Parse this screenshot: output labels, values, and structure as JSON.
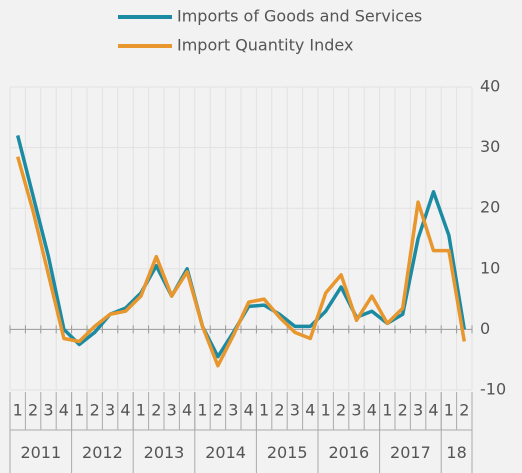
{
  "chart_data": {
    "type": "line",
    "categories": [
      "1",
      "2",
      "3",
      "4",
      "1",
      "2",
      "3",
      "4",
      "1",
      "2",
      "3",
      "4",
      "1",
      "2",
      "3",
      "4",
      "1",
      "2",
      "3",
      "4",
      "1",
      "2",
      "3",
      "4",
      "1",
      "2",
      "3",
      "4",
      "1",
      "2"
    ],
    "years": [
      "2011",
      "2012",
      "2013",
      "2014",
      "2015",
      "2016",
      "2017",
      "18"
    ],
    "series": [
      {
        "name": "Imports of Goods and Services",
        "color": "#1a8ba3",
        "values": [
          32,
          22,
          12,
          0,
          -2.5,
          -0.5,
          2.5,
          3.5,
          6,
          10.5,
          5.5,
          10,
          0.5,
          -4.5,
          -0.5,
          3.8,
          4,
          2.5,
          0.5,
          0.5,
          3,
          7,
          2,
          3,
          1,
          2.5,
          15,
          22.7,
          15.5,
          0
        ]
      },
      {
        "name": "Import Quantity Index",
        "color": "#e8962e",
        "values": [
          28.5,
          19.5,
          9,
          -1.5,
          -2,
          0.5,
          2.5,
          3,
          5.5,
          12,
          5.5,
          9.5,
          0.5,
          -6,
          -1,
          4.5,
          5,
          2,
          -0.5,
          -1.5,
          6,
          9,
          1.5,
          5.5,
          1,
          3.5,
          21,
          13,
          13,
          -2
        ]
      }
    ],
    "ylim": [
      -10,
      40
    ],
    "yticks": [
      -10,
      0,
      10,
      20,
      30,
      40
    ],
    "grid": true
  }
}
